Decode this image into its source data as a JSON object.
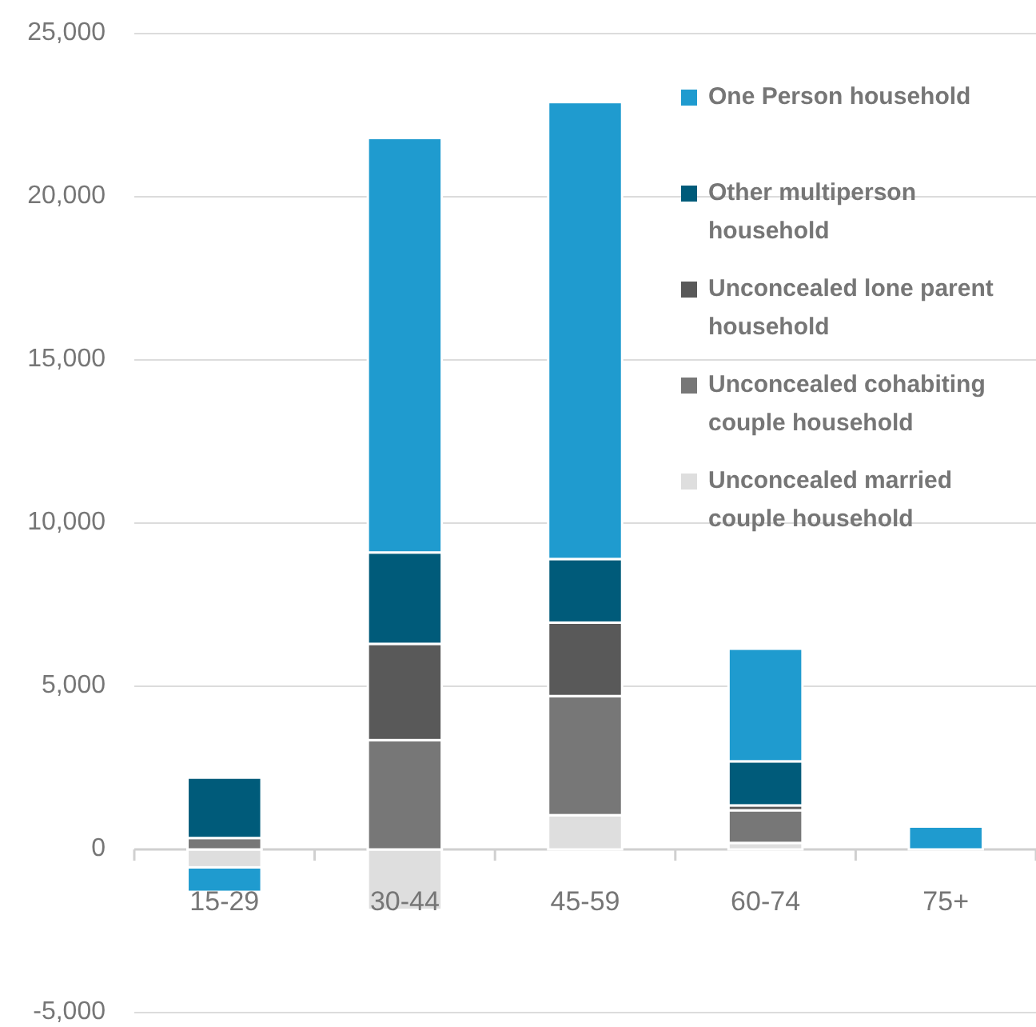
{
  "chart_data": {
    "type": "bar",
    "stacked": true,
    "categories": [
      "15-29",
      "30-44",
      "45-59",
      "60-74",
      "75+"
    ],
    "series": [
      {
        "name": "Unconcealed married couple household",
        "color": "#dedede",
        "values": [
          -550,
          -1850,
          1050,
          200,
          null
        ]
      },
      {
        "name": "Unconcealed cohabiting couple household",
        "color": "#777777",
        "values": [
          350,
          3350,
          3650,
          1000,
          null
        ]
      },
      {
        "name": "Unconcealed lone parent household",
        "color": "#595959",
        "values": [
          null,
          2950,
          2250,
          150,
          null
        ]
      },
      {
        "name": "Other multiperson household",
        "color": "#005b7a",
        "values": [
          1850,
          2800,
          1950,
          1350,
          null
        ]
      },
      {
        "name": "One Person household",
        "color": "#1f9bcf",
        "values": [
          -750,
          12700,
          14000,
          3450,
          700
        ]
      }
    ],
    "ylim": [
      -5000,
      25000
    ],
    "yticks": [
      {
        "value": -5000,
        "label": "-5,000"
      },
      0,
      {
        "value": 5000,
        "label": "5,000"
      },
      {
        "value": 10000,
        "label": "10,000"
      },
      {
        "value": 15000,
        "label": "15,000"
      },
      {
        "value": 20000,
        "label": "20,000"
      },
      {
        "value": 25000,
        "label": "25,000"
      }
    ],
    "grid": "y",
    "legend": "top right"
  }
}
